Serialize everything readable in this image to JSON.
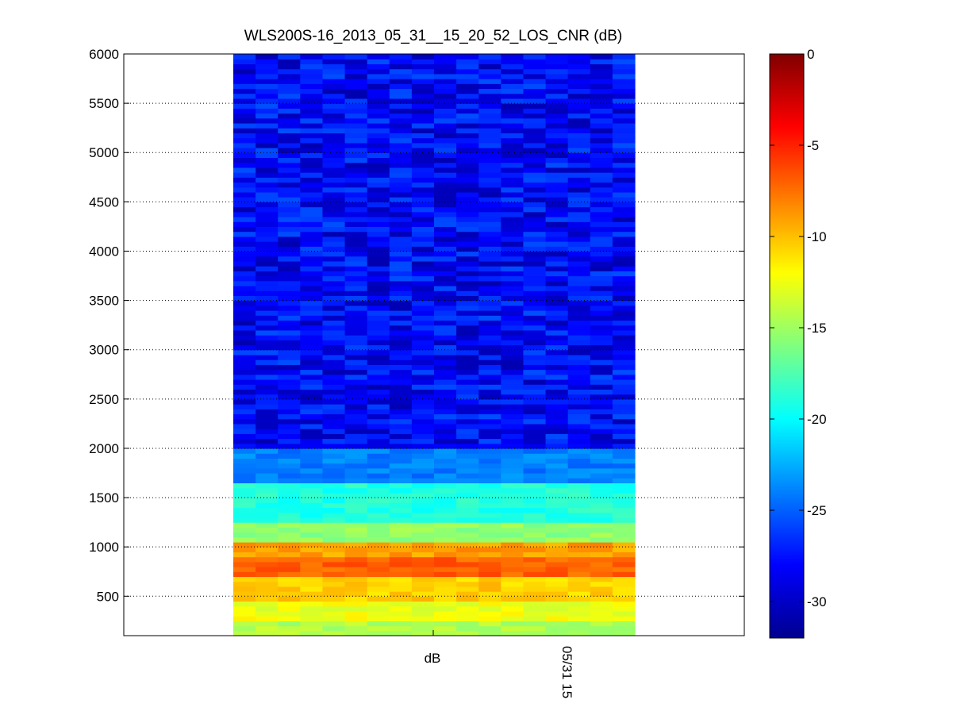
{
  "chart_data": {
    "type": "heatmap",
    "title": "WLS200S-16_2013_05_31__15_20_52_LOS_CNR (dB)",
    "xlabel": "dB",
    "x_tick_labels": [
      "05/31 15"
    ],
    "ylabel": "",
    "ylim": [
      100,
      6000
    ],
    "y_ticks": [
      500,
      1000,
      1500,
      2000,
      2500,
      3000,
      3500,
      4000,
      4500,
      5000,
      5500,
      6000
    ],
    "grid": "y-dotted",
    "colorbar": {
      "label": "dB",
      "range": [
        -32,
        0
      ],
      "ticks": [
        0,
        -5,
        -10,
        -15,
        -20,
        -25,
        -30
      ],
      "colormap": "jet"
    },
    "n_columns": 18,
    "data_column_span": "middle (approx. columns 294–800 of plot)",
    "profile_by_range": [
      {
        "range_from": 100,
        "range_to": 250,
        "cnr_db": -14.5
      },
      {
        "range_from": 250,
        "range_to": 450,
        "cnr_db": -12.5
      },
      {
        "range_from": 450,
        "range_to": 700,
        "cnr_db": -10.5
      },
      {
        "range_from": 700,
        "range_to": 900,
        "cnr_db": -7.0
      },
      {
        "range_from": 900,
        "range_to": 1050,
        "cnr_db": -9.0
      },
      {
        "range_from": 1050,
        "range_to": 1250,
        "cnr_db": -15.5
      },
      {
        "range_from": 1250,
        "range_to": 1650,
        "cnr_db": -19.0
      },
      {
        "range_from": 1650,
        "range_to": 2000,
        "cnr_db": -24.0
      },
      {
        "range_from": 2000,
        "range_to": 6000,
        "cnr_db": -28.0
      }
    ]
  }
}
